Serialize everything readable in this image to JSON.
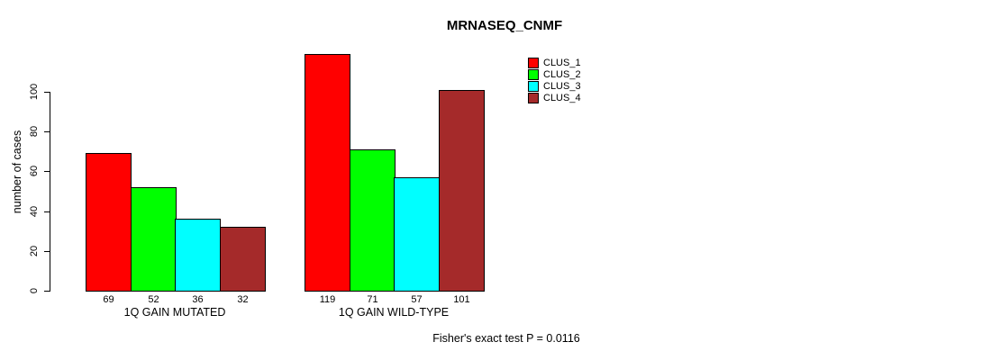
{
  "chart_data": {
    "type": "bar",
    "title": "MRNASEQ_CNMF",
    "ylabel": "number of cases",
    "xlabel": "",
    "categories": [
      "1Q GAIN MUTATED",
      "1Q GAIN WILD-TYPE"
    ],
    "series": [
      {
        "name": "CLUS_1",
        "color": "#FF0000",
        "values": [
          69,
          119
        ]
      },
      {
        "name": "CLUS_2",
        "color": "#00FF00",
        "values": [
          52,
          71
        ]
      },
      {
        "name": "CLUS_3",
        "color": "#00FFFF",
        "values": [
          36,
          57
        ]
      },
      {
        "name": "CLUS_4",
        "color": "#A52A2A",
        "values": [
          32,
          101
        ]
      }
    ],
    "bar_value_labels_shown": true,
    "yticks": [
      0,
      20,
      40,
      60,
      80,
      100
    ],
    "ylim": [
      0,
      120
    ],
    "grid": false,
    "legend_position": "top-right-outside",
    "annotation": "Fisher's exact test P = 0.0116",
    "axis_color": "#000000",
    "background_color": "#FFFFFF"
  }
}
